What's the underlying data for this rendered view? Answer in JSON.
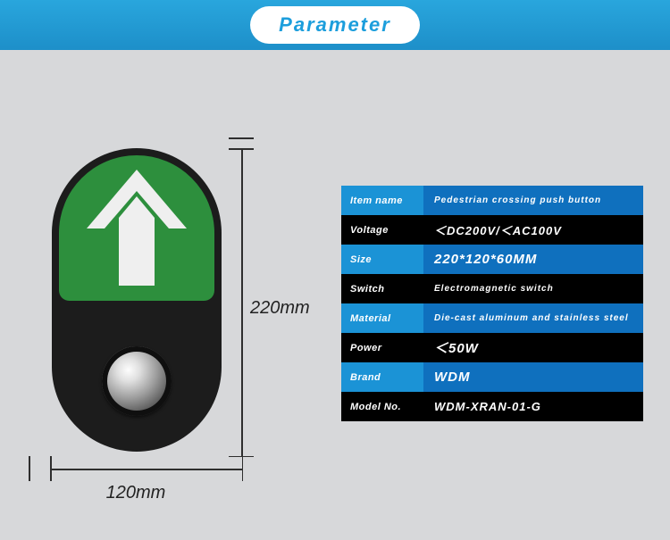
{
  "header": {
    "title": "Parameter"
  },
  "dimensions": {
    "width_label": "120mm",
    "height_label": "220mm"
  },
  "colors": {
    "header_gradient_top": "#29a6dd",
    "header_gradient_bottom": "#1d8fc9",
    "page_bg": "#d7d8da",
    "device_body": "#1c1c1c",
    "device_face": "#2d8f3d",
    "arrow_fill": "#efefef",
    "row_blue_key": "#1b93d6",
    "row_blue_val": "#0f70be",
    "row_black": "#000000",
    "text_white": "#ffffff"
  },
  "spec": {
    "rows": [
      {
        "key": "Item name",
        "value": "Pedestrian crossing push button",
        "band": "blue",
        "val_size": "fs-small"
      },
      {
        "key": "Voltage",
        "value": "＜DC200V/＜AC100V",
        "band": "black",
        "val_size": "fs-med"
      },
      {
        "key": "Size",
        "value": "220*120*60MM",
        "band": "blue",
        "val_size": "fs-big"
      },
      {
        "key": "Switch",
        "value": "Electromagnetic switch",
        "band": "black",
        "val_size": "fs-small"
      },
      {
        "key": "Material",
        "value": "Die-cast aluminum and stainless steel",
        "band": "blue",
        "val_size": "fs-small"
      },
      {
        "key": "Power",
        "value": "＜50W",
        "band": "black",
        "val_size": "fs-big"
      },
      {
        "key": "Brand",
        "value": "WDM",
        "band": "blue",
        "val_size": "fs-big"
      },
      {
        "key": "Model No.",
        "value": "WDM-XRAN-01-G",
        "band": "black",
        "val_size": "fs-med"
      }
    ]
  }
}
